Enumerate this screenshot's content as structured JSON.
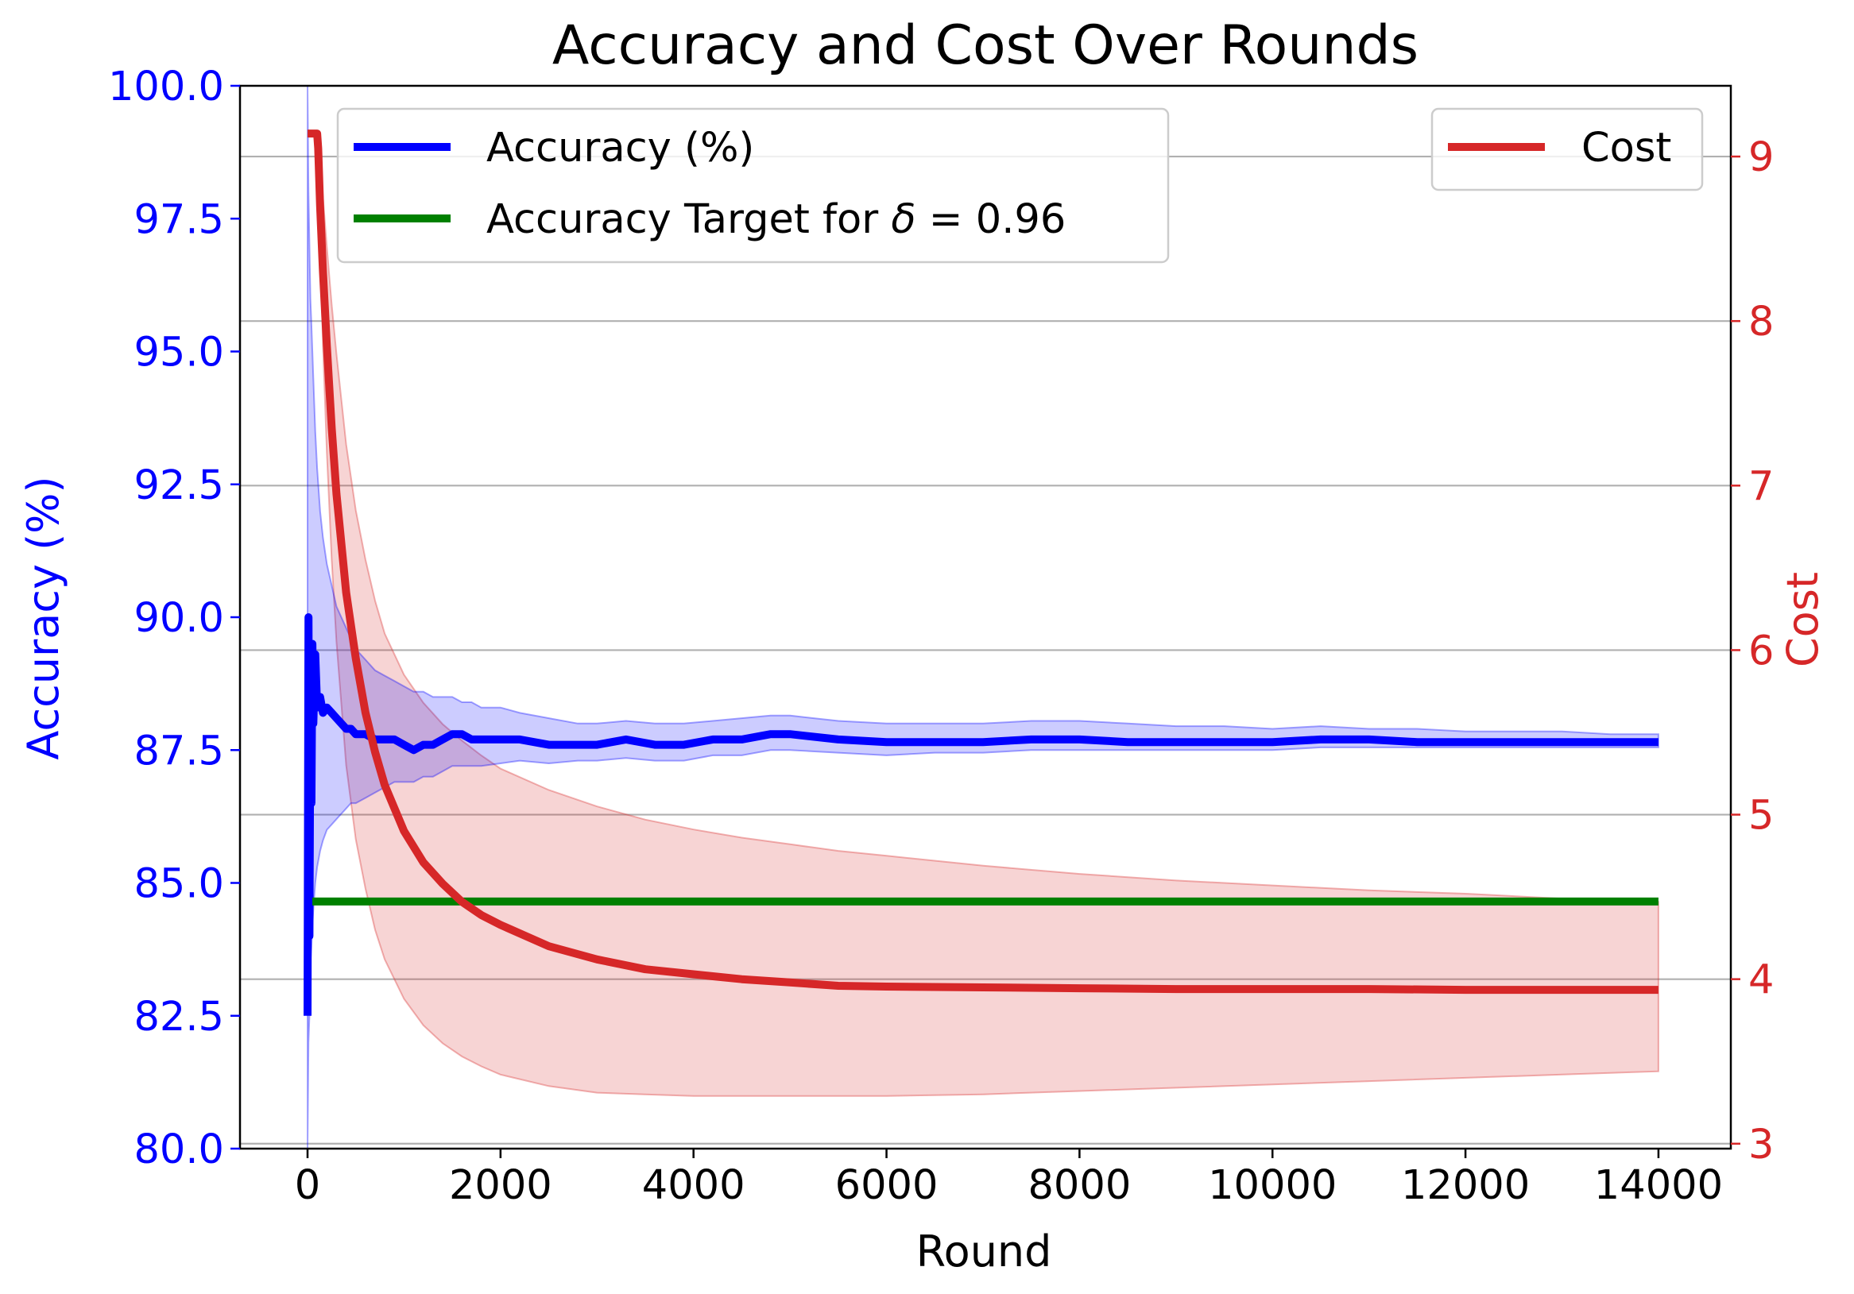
{
  "chart_data": {
    "type": "line",
    "title": "Accuracy and Cost Over Rounds",
    "xlabel": "Round",
    "ylabel_left": "Accuracy (%)",
    "ylabel_right": "Cost",
    "xlim": [
      -700,
      14750
    ],
    "ylim_left": [
      80.0,
      100.0
    ],
    "ylim_right": [
      2.97,
      9.43
    ],
    "x_ticks": [
      0,
      2000,
      4000,
      6000,
      8000,
      10000,
      12000,
      14000
    ],
    "x_tick_labels": [
      "0",
      "2000",
      "4000",
      "6000",
      "8000",
      "10000",
      "12000",
      "14000"
    ],
    "y_left_ticks": [
      80.0,
      82.5,
      85.0,
      87.5,
      90.0,
      92.5,
      95.0,
      97.5,
      100.0
    ],
    "y_left_tick_labels": [
      "80.0",
      "82.5",
      "85.0",
      "87.5",
      "90.0",
      "92.5",
      "95.0",
      "97.5",
      "100.0"
    ],
    "y_right_ticks": [
      3,
      4,
      5,
      6,
      7,
      8,
      9
    ],
    "y_right_tick_labels": [
      "3",
      "4",
      "5",
      "6",
      "7",
      "8",
      "9"
    ],
    "grid": "horizontal lines at right-axis ticks",
    "colors": {
      "accuracy": "#0000ff",
      "accuracy_band": "#0000ff",
      "target": "#008000",
      "cost": "#d62728",
      "cost_band": "#d62728",
      "left_axis": "#0000ff",
      "right_axis": "#d62728"
    },
    "series": [
      {
        "name": "Accuracy (%)",
        "axis": "left",
        "x": [
          0,
          10,
          20,
          30,
          40,
          50,
          60,
          80,
          100,
          130,
          160,
          200,
          250,
          300,
          350,
          400,
          450,
          500,
          600,
          700,
          800,
          900,
          1000,
          1100,
          1200,
          1300,
          1400,
          1500,
          1600,
          1700,
          1800,
          2000,
          2200,
          2500,
          2800,
          3000,
          3300,
          3600,
          3900,
          4200,
          4500,
          4800,
          5000,
          5500,
          6000,
          6500,
          7000,
          7500,
          8000,
          8500,
          9000,
          9500,
          10000,
          10500,
          11000,
          11500,
          12000,
          12500,
          13000,
          13500,
          14000
        ],
        "y": [
          82.5,
          90.0,
          84.0,
          88.7,
          86.5,
          89.5,
          88.0,
          89.3,
          88.3,
          88.5,
          88.2,
          88.3,
          88.2,
          88.1,
          88.0,
          87.9,
          87.9,
          87.8,
          87.8,
          87.7,
          87.7,
          87.7,
          87.6,
          87.5,
          87.6,
          87.6,
          87.7,
          87.8,
          87.8,
          87.7,
          87.7,
          87.7,
          87.7,
          87.6,
          87.6,
          87.6,
          87.7,
          87.6,
          87.6,
          87.7,
          87.7,
          87.8,
          87.8,
          87.7,
          87.65,
          87.65,
          87.65,
          87.7,
          87.7,
          87.65,
          87.65,
          87.65,
          87.65,
          87.7,
          87.7,
          87.65,
          87.65,
          87.65,
          87.65,
          87.65,
          87.65
        ],
        "y_lower": [
          80.0,
          82.0,
          82.5,
          83.5,
          83.8,
          84.2,
          84.5,
          85.0,
          85.3,
          85.6,
          85.8,
          86.0,
          86.1,
          86.2,
          86.3,
          86.4,
          86.5,
          86.5,
          86.6,
          86.7,
          86.8,
          86.9,
          86.9,
          86.9,
          87.0,
          87.0,
          87.1,
          87.2,
          87.2,
          87.2,
          87.2,
          87.25,
          87.3,
          87.25,
          87.3,
          87.3,
          87.35,
          87.3,
          87.3,
          87.4,
          87.4,
          87.5,
          87.5,
          87.45,
          87.4,
          87.45,
          87.45,
          87.5,
          87.5,
          87.5,
          87.5,
          87.5,
          87.5,
          87.55,
          87.55,
          87.55,
          87.55,
          87.55,
          87.55,
          87.55,
          87.55
        ]
      },
      {
        "name": "Accuracy (%) band upper",
        "axis": "left",
        "x": [
          0,
          10,
          20,
          30,
          40,
          50,
          60,
          80,
          100,
          130,
          160,
          200,
          250,
          300,
          350,
          400,
          450,
          500,
          600,
          700,
          800,
          900,
          1000,
          1100,
          1200,
          1300,
          1400,
          1500,
          1600,
          1700,
          1800,
          2000,
          2200,
          2500,
          2800,
          3000,
          3300,
          3600,
          3900,
          4200,
          4500,
          4800,
          5000,
          5500,
          6000,
          6500,
          7000,
          7500,
          8000,
          8500,
          9000,
          9500,
          10000,
          10500,
          11000,
          11500,
          12000,
          12500,
          13000,
          13500,
          14000
        ],
        "y": [
          100.0,
          98.0,
          97.0,
          96.0,
          95.5,
          95.0,
          94.5,
          93.5,
          92.8,
          92.0,
          91.5,
          91.0,
          90.6,
          90.2,
          90.0,
          89.8,
          89.6,
          89.4,
          89.2,
          89.0,
          88.9,
          88.8,
          88.7,
          88.6,
          88.6,
          88.5,
          88.5,
          88.5,
          88.4,
          88.4,
          88.3,
          88.3,
          88.2,
          88.1,
          88.0,
          88.0,
          88.05,
          88.0,
          88.0,
          88.05,
          88.1,
          88.15,
          88.15,
          88.05,
          88.0,
          88.0,
          88.0,
          88.05,
          88.05,
          88.0,
          87.95,
          87.95,
          87.9,
          87.95,
          87.9,
          87.9,
          87.85,
          87.85,
          87.85,
          87.8,
          87.8
        ]
      },
      {
        "name": "Accuracy Target for δ = 0.96",
        "axis": "left",
        "x": [
          50,
          14000
        ],
        "y": [
          84.65,
          84.65
        ]
      },
      {
        "name": "Cost",
        "axis": "right",
        "x": [
          0,
          20,
          40,
          60,
          80,
          100,
          110,
          130,
          160,
          200,
          250,
          300,
          400,
          500,
          600,
          700,
          800,
          1000,
          1200,
          1400,
          1600,
          1800,
          2000,
          2500,
          3000,
          3500,
          4000,
          4500,
          5000,
          5500,
          6000,
          7000,
          8000,
          9000,
          10000,
          11000,
          12000,
          13000,
          14000
        ],
        "y": [
          9.14,
          9.14,
          9.14,
          9.14,
          9.14,
          9.14,
          9.05,
          8.7,
          8.3,
          7.85,
          7.35,
          6.95,
          6.35,
          5.95,
          5.62,
          5.38,
          5.18,
          4.9,
          4.71,
          4.58,
          4.47,
          4.39,
          4.33,
          4.2,
          4.12,
          4.06,
          4.03,
          4.0,
          3.98,
          3.96,
          3.955,
          3.95,
          3.945,
          3.94,
          3.94,
          3.94,
          3.935,
          3.935,
          3.935
        ]
      },
      {
        "name": "Cost band",
        "axis": "right",
        "x": [
          100,
          130,
          160,
          200,
          250,
          300,
          400,
          500,
          600,
          700,
          800,
          1000,
          1200,
          1400,
          1600,
          1800,
          2000,
          2500,
          3000,
          3500,
          4000,
          4500,
          5000,
          5500,
          6000,
          7000,
          8000,
          9000,
          10000,
          11000,
          12000,
          13000,
          14000
        ],
        "y_upper": [
          9.14,
          8.95,
          8.75,
          8.45,
          8.1,
          7.8,
          7.25,
          6.85,
          6.55,
          6.3,
          6.1,
          5.85,
          5.68,
          5.55,
          5.45,
          5.36,
          5.28,
          5.15,
          5.05,
          4.97,
          4.91,
          4.86,
          4.82,
          4.78,
          4.75,
          4.69,
          4.64,
          4.6,
          4.57,
          4.54,
          4.52,
          4.49,
          4.47
        ],
        "y_lower": [
          9.14,
          8.5,
          7.85,
          7.2,
          6.55,
          6.05,
          5.3,
          4.85,
          4.55,
          4.3,
          4.12,
          3.88,
          3.72,
          3.61,
          3.53,
          3.47,
          3.42,
          3.35,
          3.31,
          3.3,
          3.29,
          3.29,
          3.29,
          3.29,
          3.29,
          3.3,
          3.32,
          3.34,
          3.36,
          3.38,
          3.4,
          3.42,
          3.44
        ]
      }
    ],
    "legends": [
      {
        "placement": "upper-left",
        "entries": [
          {
            "label": "Accuracy (%)",
            "color": "#0000ff"
          },
          {
            "label": "Accuracy Target for δ = 0.96",
            "color": "#008000",
            "label_prefix": "Accuracy Target for ",
            "label_symbol": "δ",
            "label_suffix": " = 0.96"
          }
        ]
      },
      {
        "placement": "upper-right",
        "entries": [
          {
            "label": "Cost",
            "color": "#d62728"
          }
        ]
      }
    ]
  }
}
